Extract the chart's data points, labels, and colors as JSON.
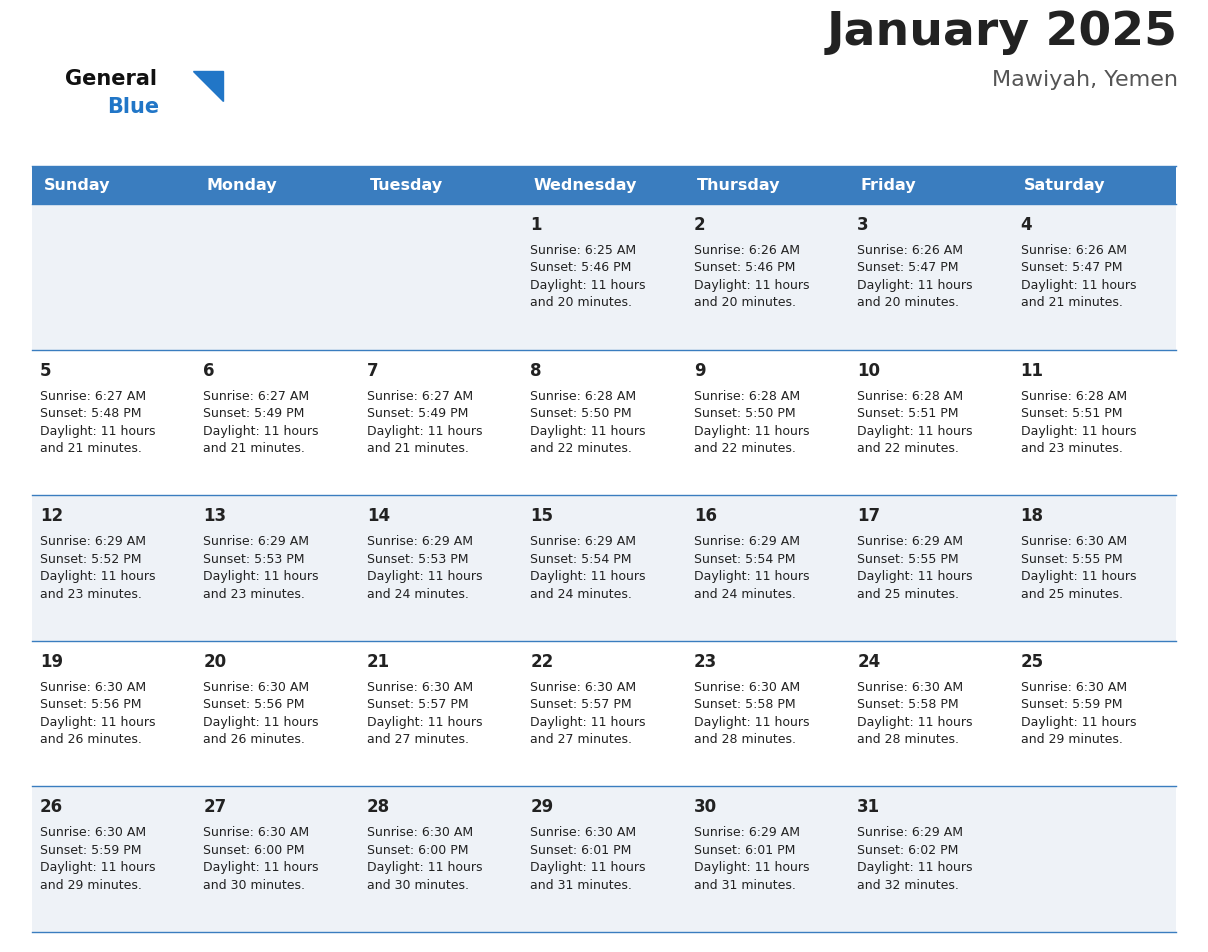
{
  "title": "January 2025",
  "subtitle": "Mawiyah, Yemen",
  "days_of_week": [
    "Sunday",
    "Monday",
    "Tuesday",
    "Wednesday",
    "Thursday",
    "Friday",
    "Saturday"
  ],
  "header_bg": "#3a7dbf",
  "header_text_color": "#ffffff",
  "row_bg_odd": "#eef2f7",
  "row_bg_even": "#ffffff",
  "cell_border_color": "#3a7dbf",
  "title_color": "#222222",
  "subtitle_color": "#555555",
  "day_number_color": "#222222",
  "info_color": "#222222",
  "logo_general_color": "#111111",
  "logo_blue_color": "#2176c7",
  "calendar": [
    [
      {
        "day": "",
        "sunrise": "",
        "sunset": "",
        "daylight": ""
      },
      {
        "day": "",
        "sunrise": "",
        "sunset": "",
        "daylight": ""
      },
      {
        "day": "",
        "sunrise": "",
        "sunset": "",
        "daylight": ""
      },
      {
        "day": "1",
        "sunrise": "6:25 AM",
        "sunset": "5:46 PM",
        "daylight": "11 hours and 20 minutes."
      },
      {
        "day": "2",
        "sunrise": "6:26 AM",
        "sunset": "5:46 PM",
        "daylight": "11 hours and 20 minutes."
      },
      {
        "day": "3",
        "sunrise": "6:26 AM",
        "sunset": "5:47 PM",
        "daylight": "11 hours and 20 minutes."
      },
      {
        "day": "4",
        "sunrise": "6:26 AM",
        "sunset": "5:47 PM",
        "daylight": "11 hours and 21 minutes."
      }
    ],
    [
      {
        "day": "5",
        "sunrise": "6:27 AM",
        "sunset": "5:48 PM",
        "daylight": "11 hours and 21 minutes."
      },
      {
        "day": "6",
        "sunrise": "6:27 AM",
        "sunset": "5:49 PM",
        "daylight": "11 hours and 21 minutes."
      },
      {
        "day": "7",
        "sunrise": "6:27 AM",
        "sunset": "5:49 PM",
        "daylight": "11 hours and 21 minutes."
      },
      {
        "day": "8",
        "sunrise": "6:28 AM",
        "sunset": "5:50 PM",
        "daylight": "11 hours and 22 minutes."
      },
      {
        "day": "9",
        "sunrise": "6:28 AM",
        "sunset": "5:50 PM",
        "daylight": "11 hours and 22 minutes."
      },
      {
        "day": "10",
        "sunrise": "6:28 AM",
        "sunset": "5:51 PM",
        "daylight": "11 hours and 22 minutes."
      },
      {
        "day": "11",
        "sunrise": "6:28 AM",
        "sunset": "5:51 PM",
        "daylight": "11 hours and 23 minutes."
      }
    ],
    [
      {
        "day": "12",
        "sunrise": "6:29 AM",
        "sunset": "5:52 PM",
        "daylight": "11 hours and 23 minutes."
      },
      {
        "day": "13",
        "sunrise": "6:29 AM",
        "sunset": "5:53 PM",
        "daylight": "11 hours and 23 minutes."
      },
      {
        "day": "14",
        "sunrise": "6:29 AM",
        "sunset": "5:53 PM",
        "daylight": "11 hours and 24 minutes."
      },
      {
        "day": "15",
        "sunrise": "6:29 AM",
        "sunset": "5:54 PM",
        "daylight": "11 hours and 24 minutes."
      },
      {
        "day": "16",
        "sunrise": "6:29 AM",
        "sunset": "5:54 PM",
        "daylight": "11 hours and 24 minutes."
      },
      {
        "day": "17",
        "sunrise": "6:29 AM",
        "sunset": "5:55 PM",
        "daylight": "11 hours and 25 minutes."
      },
      {
        "day": "18",
        "sunrise": "6:30 AM",
        "sunset": "5:55 PM",
        "daylight": "11 hours and 25 minutes."
      }
    ],
    [
      {
        "day": "19",
        "sunrise": "6:30 AM",
        "sunset": "5:56 PM",
        "daylight": "11 hours and 26 minutes."
      },
      {
        "day": "20",
        "sunrise": "6:30 AM",
        "sunset": "5:56 PM",
        "daylight": "11 hours and 26 minutes."
      },
      {
        "day": "21",
        "sunrise": "6:30 AM",
        "sunset": "5:57 PM",
        "daylight": "11 hours and 27 minutes."
      },
      {
        "day": "22",
        "sunrise": "6:30 AM",
        "sunset": "5:57 PM",
        "daylight": "11 hours and 27 minutes."
      },
      {
        "day": "23",
        "sunrise": "6:30 AM",
        "sunset": "5:58 PM",
        "daylight": "11 hours and 28 minutes."
      },
      {
        "day": "24",
        "sunrise": "6:30 AM",
        "sunset": "5:58 PM",
        "daylight": "11 hours and 28 minutes."
      },
      {
        "day": "25",
        "sunrise": "6:30 AM",
        "sunset": "5:59 PM",
        "daylight": "11 hours and 29 minutes."
      }
    ],
    [
      {
        "day": "26",
        "sunrise": "6:30 AM",
        "sunset": "5:59 PM",
        "daylight": "11 hours and 29 minutes."
      },
      {
        "day": "27",
        "sunrise": "6:30 AM",
        "sunset": "6:00 PM",
        "daylight": "11 hours and 30 minutes."
      },
      {
        "day": "28",
        "sunrise": "6:30 AM",
        "sunset": "6:00 PM",
        "daylight": "11 hours and 30 minutes."
      },
      {
        "day": "29",
        "sunrise": "6:30 AM",
        "sunset": "6:01 PM",
        "daylight": "11 hours and 31 minutes."
      },
      {
        "day": "30",
        "sunrise": "6:29 AM",
        "sunset": "6:01 PM",
        "daylight": "11 hours and 31 minutes."
      },
      {
        "day": "31",
        "sunrise": "6:29 AM",
        "sunset": "6:02 PM",
        "daylight": "11 hours and 32 minutes."
      },
      {
        "day": "",
        "sunrise": "",
        "sunset": "",
        "daylight": ""
      }
    ]
  ]
}
